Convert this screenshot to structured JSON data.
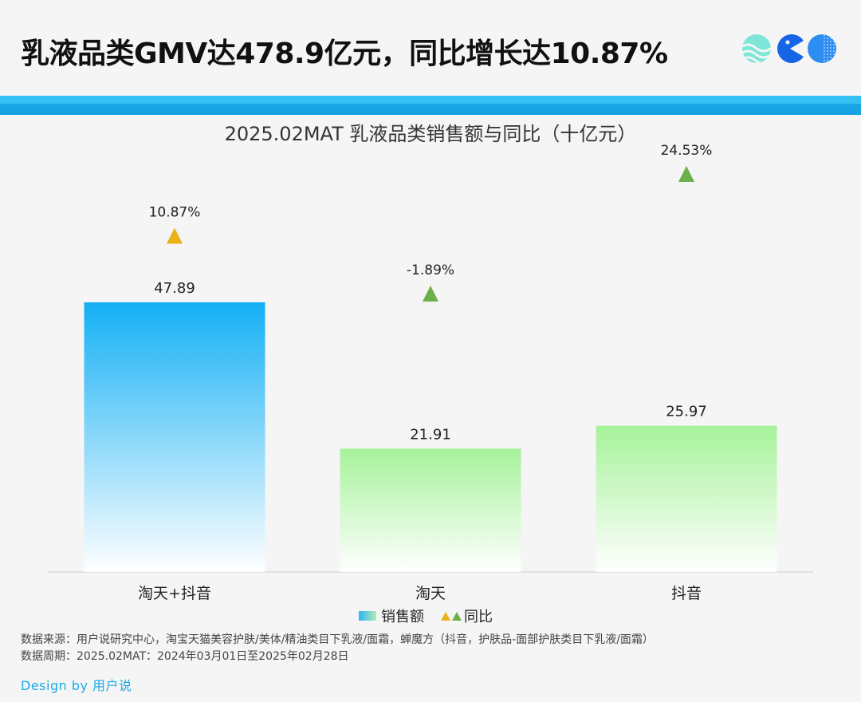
{
  "headline": "乳液品类GMV达478.9亿元，同比增长达10.87%",
  "chart_title": "2025.02MAT 乳液品类销售额与同比（十亿元）",
  "colors": {
    "bar_top_blue": "#14b0f5",
    "bar_top_green": "#a6f29a",
    "triangle_gold": "#e9b21b",
    "triangle_green": "#6bb04a",
    "band": "#1aa9e8",
    "brand_text": "#1aa9e8"
  },
  "chart_data": {
    "type": "bar",
    "categories": [
      "淘天+抖音",
      "淘天",
      "抖音"
    ],
    "series": [
      {
        "name": "销售额",
        "values": [
          47.89,
          21.91,
          25.97
        ]
      },
      {
        "name": "同比",
        "values": [
          10.87,
          -1.89,
          24.53
        ]
      }
    ],
    "value_labels": [
      "47.89",
      "21.91",
      "25.97"
    ],
    "yoy_labels": [
      "10.87%",
      "-1.89%",
      "24.53%"
    ],
    "ylim": [
      0,
      70
    ]
  },
  "legend": {
    "sales": "销售额",
    "yoy": "同比"
  },
  "source_lines": [
    "数据来源：用户说研究中心，淘宝天猫美容护肤/美体/精油类目下乳液/面霜，蝉魔方（抖音，护肤品-面部护肤类目下乳液/面霜）",
    "数据周期：2025.02MAT：2024年03月01日至2025年02月28日"
  ],
  "brand": "Design by 用户说",
  "icons": [
    "waves-logo-icon",
    "pacman-logo-icon",
    "dotted-circle-logo-icon"
  ]
}
